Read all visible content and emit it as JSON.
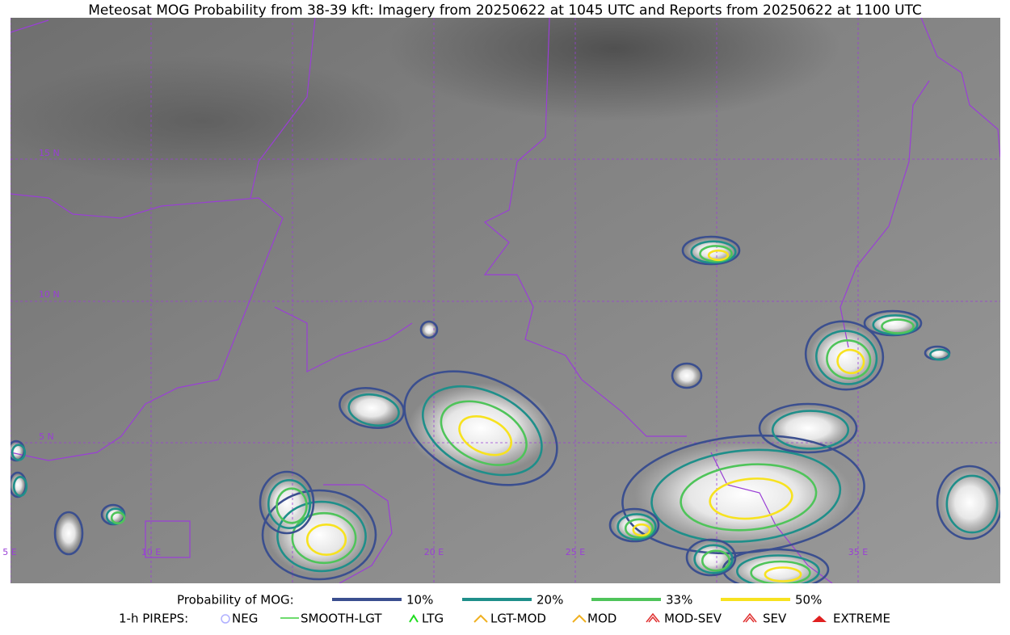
{
  "header": {
    "title": "Meteosat MOG Probability from 38-39 kft: Imagery from 20250622 at 1045 UTC and Reports from 20250622 at 1100 UTC"
  },
  "map": {
    "lon_labels": [
      "5 E",
      "10 E",
      "20 E",
      "25 E",
      "35 E"
    ],
    "lat_labels": [
      "15 N",
      "10 N",
      "5 N"
    ]
  },
  "legend": {
    "mog": {
      "label": "Probability of MOG:",
      "items": [
        "10%",
        "20%",
        "33%",
        "50%"
      ]
    },
    "pireps": {
      "label": "1-h PIREPS:",
      "items": [
        "NEG",
        "SMOOTH-LGT",
        "LTG",
        "LGT-MOD",
        "MOD",
        "MOD-SEV",
        "SEV",
        "EXTREME"
      ]
    }
  }
}
